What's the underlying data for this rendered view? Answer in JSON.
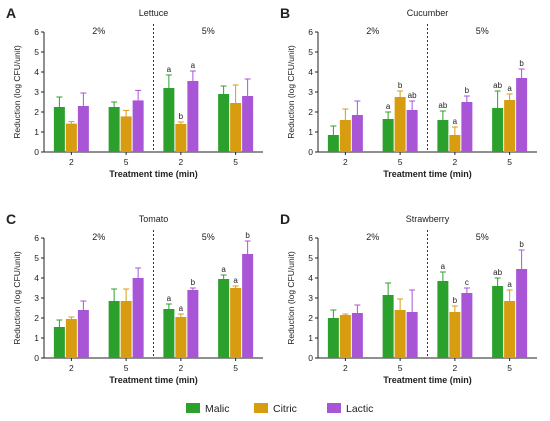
{
  "figure": {
    "xlabel": "Treatment time (min)",
    "ylabel": "Reduction (log CFU/unit)",
    "colors": {
      "Malic": "#2ca02c",
      "Citric": "#d89c10",
      "Lactic": "#a855d6"
    },
    "legend": [
      {
        "name": "Malic",
        "color": "#2ca02c"
      },
      {
        "name": "Citric",
        "color": "#d89c10"
      },
      {
        "name": "Lactic",
        "color": "#a855d6"
      }
    ]
  },
  "chart_data": [
    {
      "type": "bar",
      "letter": "A",
      "title": "Lettuce",
      "ylim": [
        0,
        6
      ],
      "yticks": [
        0,
        1,
        2,
        3,
        4,
        5,
        6
      ],
      "concentrations": [
        "2%",
        "5%"
      ],
      "groups": [
        {
          "time": "2",
          "conc": "2%",
          "values": [
            2.25,
            1.42,
            2.3
          ],
          "errors": [
            0.5,
            0.1,
            0.65
          ],
          "letters": [
            "",
            "",
            ""
          ]
        },
        {
          "time": "5",
          "conc": "2%",
          "values": [
            2.25,
            1.78,
            2.58
          ],
          "errors": [
            0.25,
            0.3,
            0.5
          ],
          "letters": [
            "",
            "",
            ""
          ]
        },
        {
          "time": "2",
          "conc": "5%",
          "values": [
            3.2,
            1.4,
            3.55
          ],
          "errors": [
            0.65,
            0.1,
            0.5
          ],
          "letters": [
            "a",
            "b",
            "a"
          ]
        },
        {
          "time": "5",
          "conc": "5%",
          "values": [
            2.9,
            2.45,
            2.8
          ],
          "errors": [
            0.4,
            0.9,
            0.85
          ],
          "letters": [
            "",
            "",
            ""
          ]
        }
      ]
    },
    {
      "type": "bar",
      "letter": "B",
      "title": "Cucumber",
      "ylim": [
        0,
        6
      ],
      "yticks": [
        0,
        1,
        2,
        3,
        4,
        5,
        6
      ],
      "concentrations": [
        "2%",
        "5%"
      ],
      "groups": [
        {
          "time": "2",
          "conc": "2%",
          "values": [
            0.85,
            1.6,
            1.85
          ],
          "errors": [
            0.45,
            0.55,
            0.7
          ],
          "letters": [
            "",
            "",
            ""
          ]
        },
        {
          "time": "5",
          "conc": "2%",
          "values": [
            1.65,
            2.75,
            2.1
          ],
          "errors": [
            0.35,
            0.3,
            0.45
          ],
          "letters": [
            "a",
            "b",
            "ab"
          ]
        },
        {
          "time": "2",
          "conc": "5%",
          "values": [
            1.6,
            0.85,
            2.5
          ],
          "errors": [
            0.45,
            0.4,
            0.3
          ],
          "letters": [
            "ab",
            "a",
            "b"
          ]
        },
        {
          "time": "5",
          "conc": "5%",
          "values": [
            2.2,
            2.6,
            3.7
          ],
          "errors": [
            0.85,
            0.3,
            0.45
          ],
          "letters": [
            "ab",
            "a",
            "b"
          ]
        }
      ]
    },
    {
      "type": "bar",
      "letter": "C",
      "title": "Tomato",
      "ylim": [
        0,
        6
      ],
      "yticks": [
        0,
        1,
        2,
        3,
        4,
        5,
        6
      ],
      "concentrations": [
        "2%",
        "5%"
      ],
      "groups": [
        {
          "time": "2",
          "conc": "2%",
          "values": [
            1.55,
            1.95,
            2.4
          ],
          "errors": [
            0.35,
            0.1,
            0.45
          ],
          "letters": [
            "",
            "",
            ""
          ]
        },
        {
          "time": "5",
          "conc": "2%",
          "values": [
            2.85,
            2.85,
            4.0
          ],
          "errors": [
            0.6,
            0.6,
            0.5
          ],
          "letters": [
            "",
            "",
            ""
          ]
        },
        {
          "time": "2",
          "conc": "5%",
          "values": [
            2.45,
            2.05,
            3.4
          ],
          "errors": [
            0.25,
            0.15,
            0.1
          ],
          "letters": [
            "a",
            "a",
            "b"
          ]
        },
        {
          "time": "5",
          "conc": "5%",
          "values": [
            3.95,
            3.5,
            5.2
          ],
          "errors": [
            0.2,
            0.1,
            0.65
          ],
          "letters": [
            "a",
            "a",
            "b"
          ]
        }
      ]
    },
    {
      "type": "bar",
      "letter": "D",
      "title": "Strawberry",
      "ylim": [
        0,
        6
      ],
      "yticks": [
        0,
        1,
        2,
        3,
        4,
        5,
        6
      ],
      "concentrations": [
        "2%",
        "5%"
      ],
      "groups": [
        {
          "time": "2",
          "conc": "2%",
          "values": [
            2.0,
            2.15,
            2.25
          ],
          "errors": [
            0.4,
            0.05,
            0.4
          ],
          "letters": [
            "",
            "",
            ""
          ]
        },
        {
          "time": "5",
          "conc": "2%",
          "values": [
            3.15,
            2.4,
            2.3
          ],
          "errors": [
            0.6,
            0.55,
            1.1
          ],
          "letters": [
            "",
            "",
            ""
          ]
        },
        {
          "time": "2",
          "conc": "5%",
          "values": [
            3.85,
            2.3,
            3.25
          ],
          "errors": [
            0.45,
            0.3,
            0.25
          ],
          "letters": [
            "a",
            "b",
            "c"
          ]
        },
        {
          "time": "5",
          "conc": "5%",
          "values": [
            3.6,
            2.85,
            4.45
          ],
          "errors": [
            0.4,
            0.55,
            0.95
          ],
          "letters": [
            "ab",
            "a",
            "b"
          ]
        }
      ]
    }
  ]
}
